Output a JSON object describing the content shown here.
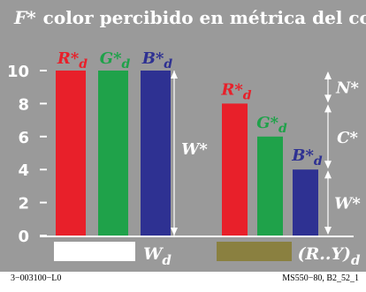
{
  "chart_data": {
    "type": "bar",
    "title": "color percibido en métrica del color",
    "title_prefix": "F*",
    "y_ticks": [
      0,
      2,
      4,
      6,
      8,
      10
    ],
    "ylim": [
      0,
      10
    ],
    "grid": false,
    "groups": [
      {
        "name": "Wd",
        "label_base": "W",
        "label_sub": "d",
        "swatch_color": "#ffffff",
        "bars": [
          {
            "label_base": "R*",
            "label_sub": "d",
            "value": 10,
            "color": "#e8202a"
          },
          {
            "label_base": "G*",
            "label_sub": "d",
            "value": 10,
            "color": "#1fa24a"
          },
          {
            "label_base": "B*",
            "label_sub": "d",
            "value": 10,
            "color": "#2e3192"
          }
        ]
      },
      {
        "name": "(R..Y)d",
        "label_base": "(R..Y)",
        "label_sub": "d",
        "swatch_color": "#8a8040",
        "bars": [
          {
            "label_base": "R*",
            "label_sub": "d",
            "value": 8,
            "color": "#e8202a"
          },
          {
            "label_base": "G*",
            "label_sub": "d",
            "value": 6,
            "color": "#1fa24a"
          },
          {
            "label_base": "B*",
            "label_sub": "d",
            "value": 4,
            "color": "#2e3192"
          }
        ]
      }
    ],
    "annotations": {
      "whiteness_left": "W*",
      "blackness": "N*",
      "chroma": "C*",
      "whiteness_right": "W*"
    },
    "label_color": "#ffffff"
  },
  "footer": {
    "left": "3−003100−L0",
    "right": "MS550−80, B2_52_1"
  }
}
